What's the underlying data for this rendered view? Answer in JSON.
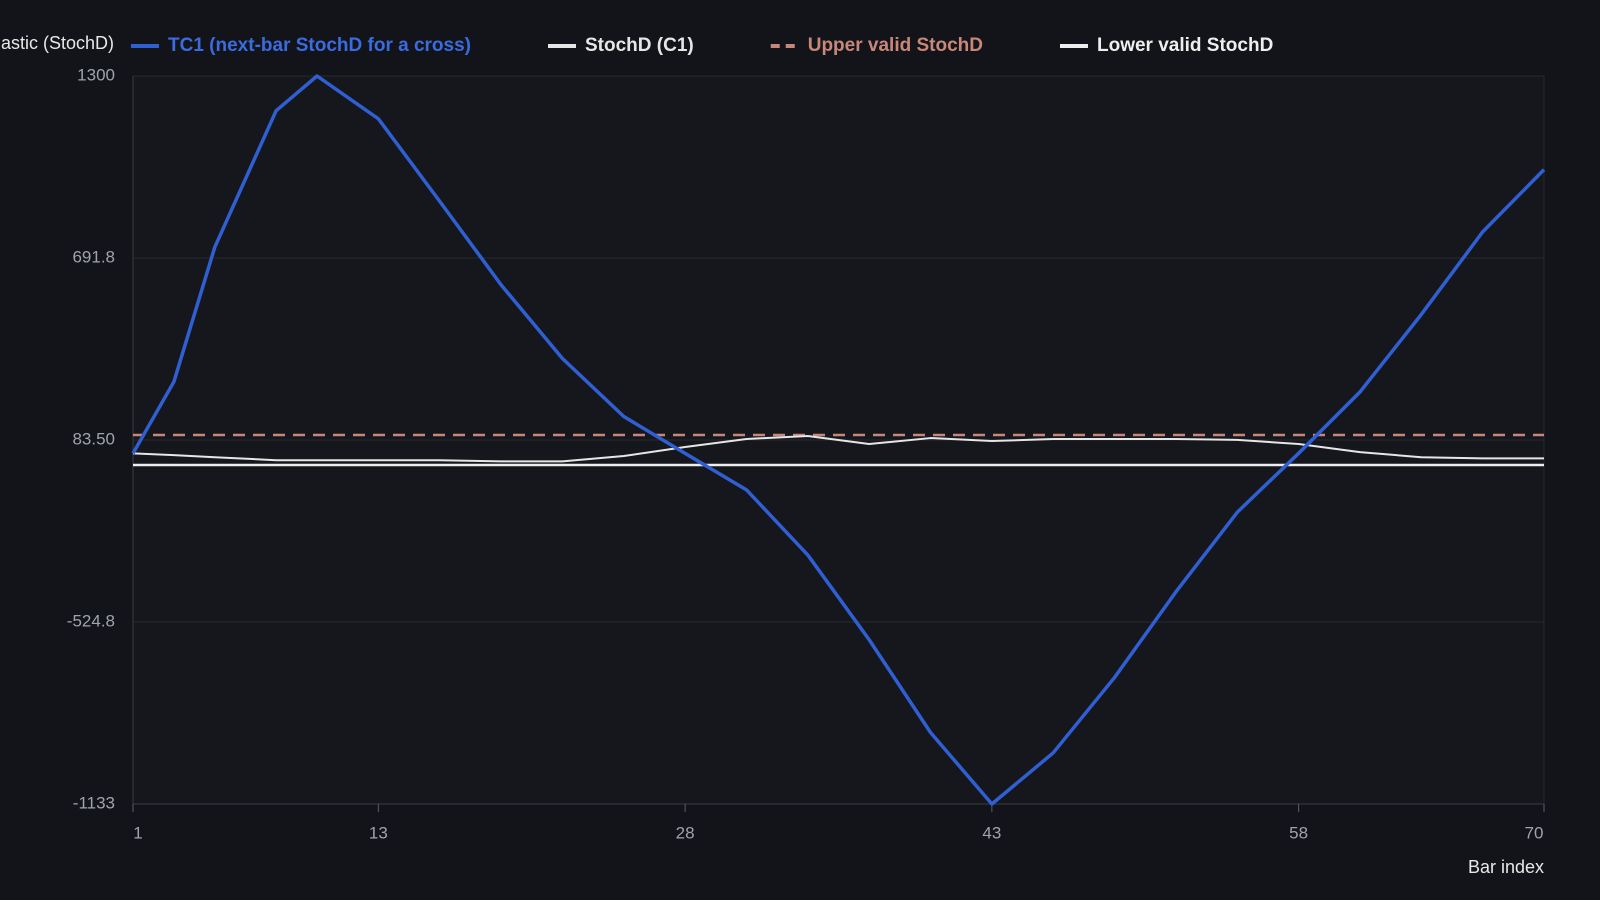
{
  "chart_data": {
    "type": "line",
    "y_label": "Stochastic (StochD)",
    "x_label": "Bar index",
    "x": [
      1,
      3,
      5,
      8,
      10,
      13,
      16,
      19,
      22,
      25,
      28,
      31,
      34,
      37,
      40,
      43,
      46,
      49,
      52,
      55,
      58,
      61,
      64,
      67,
      70
    ],
    "xlim": [
      1,
      70
    ],
    "xticks": [
      1,
      13,
      28,
      43,
      58,
      70
    ],
    "ylim": [
      -1133,
      1300
    ],
    "yticks": [
      -1133,
      -524.8,
      {
        "value": 83.5,
        "label": "83.50"
      },
      691.8,
      1300
    ],
    "grid": true,
    "series": [
      {
        "name": "TC1 (next-bar StochD for a cross)",
        "color": "#2f5fd3",
        "style": "solid",
        "width": 3.5,
        "values": [
          39,
          278,
          728,
          1184,
          1300,
          1157,
          881,
          602,
          356,
          162,
          39,
          -83,
          -301,
          -584,
          -894,
          -1133,
          -962,
          -710,
          -424,
          -158,
          39,
          244,
          503,
          779,
          987
        ]
      },
      {
        "name": "StochD (C1)",
        "color": "#e6e6e6",
        "style": "solid",
        "width": 2,
        "values": [
          39,
          33,
          26,
          16,
          16,
          16,
          16,
          12,
          12,
          30,
          60,
          87,
          97,
          70,
          90,
          80,
          87,
          87,
          87,
          84,
          70,
          43,
          26,
          22,
          22
        ]
      },
      {
        "name": "Upper valid StochD",
        "color": "#c9877a",
        "style": "dashed",
        "width": 2.5,
        "values": [
          100,
          100,
          100,
          100,
          100,
          100,
          100,
          100,
          100,
          100,
          100,
          100,
          100,
          100,
          100,
          100,
          100,
          100,
          100,
          100,
          100,
          100,
          100,
          100,
          100
        ]
      },
      {
        "name": "Lower valid StochD",
        "color": "#eeeeee",
        "style": "solid",
        "width": 2.5,
        "values": [
          0,
          0,
          0,
          0,
          0,
          0,
          0,
          0,
          0,
          0,
          0,
          0,
          0,
          0,
          0,
          0,
          0,
          0,
          0,
          0,
          0,
          0,
          0,
          0,
          0
        ]
      }
    ]
  }
}
